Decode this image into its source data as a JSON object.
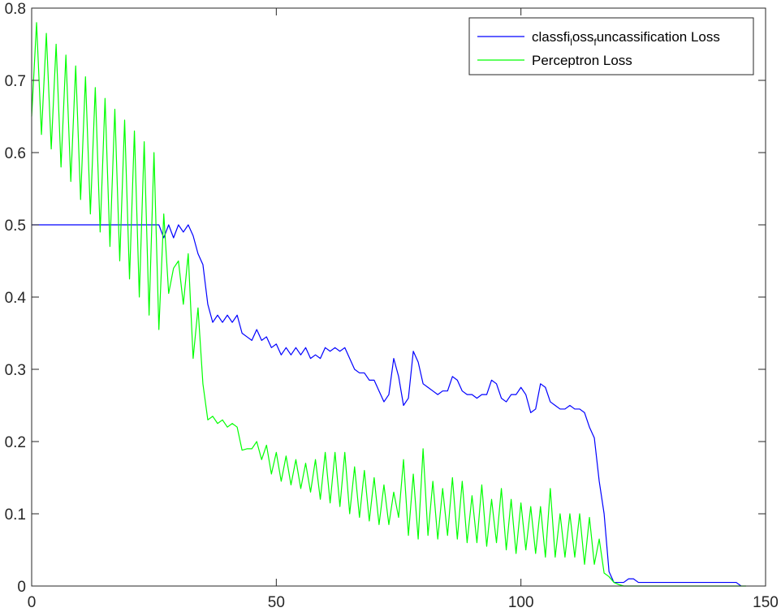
{
  "chart_data": {
    "type": "line",
    "title": "",
    "xlabel": "",
    "ylabel": "",
    "xlim": [
      0,
      150
    ],
    "ylim": [
      0,
      0.8
    ],
    "xticks": [
      "0",
      "50",
      "100",
      "150"
    ],
    "yticks": [
      "0",
      "0.1",
      "0.2",
      "0.3",
      "0.4",
      "0.5",
      "0.6",
      "0.7",
      "0.8"
    ],
    "grid": false,
    "legend_position": "top-right",
    "legend": {
      "blue_parts": [
        "classfi",
        "l",
        "oss",
        "f",
        "uncassification Loss"
      ],
      "green": "Perceptron Loss"
    },
    "series": [
      {
        "name": "classfi_loss_funcassification Loss",
        "color": "#0000ff",
        "x": [
          0,
          1,
          2,
          3,
          4,
          5,
          6,
          7,
          8,
          9,
          10,
          11,
          12,
          13,
          14,
          15,
          16,
          17,
          18,
          19,
          20,
          21,
          22,
          23,
          24,
          25,
          26,
          27,
          28,
          29,
          30,
          31,
          32,
          33,
          34,
          35,
          36,
          37,
          38,
          39,
          40,
          41,
          42,
          43,
          44,
          45,
          46,
          47,
          48,
          49,
          50,
          51,
          52,
          53,
          54,
          55,
          56,
          57,
          58,
          59,
          60,
          61,
          62,
          63,
          64,
          65,
          66,
          67,
          68,
          69,
          70,
          71,
          72,
          73,
          74,
          75,
          76,
          77,
          78,
          79,
          80,
          81,
          82,
          83,
          84,
          85,
          86,
          87,
          88,
          89,
          90,
          91,
          92,
          93,
          94,
          95,
          96,
          97,
          98,
          99,
          100,
          101,
          102,
          103,
          104,
          105,
          106,
          107,
          108,
          109,
          110,
          111,
          112,
          113,
          114,
          115,
          116,
          117,
          118,
          119,
          120,
          121,
          122,
          123,
          124,
          125,
          126,
          127,
          128,
          129,
          130,
          131,
          132,
          133,
          134,
          135,
          136,
          137,
          138,
          139,
          140,
          141,
          142,
          143,
          144,
          145
        ],
        "y": [
          0.5,
          0.5,
          0.5,
          0.5,
          0.5,
          0.5,
          0.5,
          0.5,
          0.5,
          0.5,
          0.5,
          0.5,
          0.5,
          0.5,
          0.5,
          0.5,
          0.5,
          0.5,
          0.5,
          0.5,
          0.5,
          0.5,
          0.5,
          0.5,
          0.5,
          0.5,
          0.5,
          0.482,
          0.5,
          0.482,
          0.5,
          0.49,
          0.5,
          0.485,
          0.46,
          0.445,
          0.39,
          0.365,
          0.375,
          0.365,
          0.375,
          0.365,
          0.375,
          0.35,
          0.345,
          0.34,
          0.355,
          0.34,
          0.345,
          0.33,
          0.335,
          0.32,
          0.33,
          0.32,
          0.33,
          0.32,
          0.33,
          0.315,
          0.32,
          0.315,
          0.33,
          0.325,
          0.33,
          0.325,
          0.33,
          0.315,
          0.3,
          0.295,
          0.295,
          0.285,
          0.285,
          0.27,
          0.255,
          0.265,
          0.315,
          0.29,
          0.25,
          0.26,
          0.325,
          0.31,
          0.28,
          0.275,
          0.27,
          0.265,
          0.27,
          0.27,
          0.29,
          0.285,
          0.27,
          0.265,
          0.265,
          0.26,
          0.265,
          0.265,
          0.285,
          0.28,
          0.26,
          0.255,
          0.265,
          0.265,
          0.275,
          0.265,
          0.24,
          0.245,
          0.28,
          0.275,
          0.255,
          0.25,
          0.245,
          0.245,
          0.25,
          0.245,
          0.245,
          0.24,
          0.22,
          0.205,
          0.145,
          0.1,
          0.02,
          0.005,
          0.005,
          0.005,
          0.01,
          0.01,
          0.005,
          0.005,
          0.005,
          0.005,
          0.005,
          0.005,
          0.005,
          0.005,
          0.005,
          0.005,
          0.005,
          0.005,
          0.005,
          0.005,
          0.005,
          0.005,
          0.005,
          0.005,
          0.005,
          0.005,
          0.005,
          0.0
        ]
      },
      {
        "name": "Perceptron Loss",
        "color": "#00ff00",
        "x": [
          0,
          1,
          2,
          3,
          4,
          5,
          6,
          7,
          8,
          9,
          10,
          11,
          12,
          13,
          14,
          15,
          16,
          17,
          18,
          19,
          20,
          21,
          22,
          23,
          24,
          25,
          26,
          27,
          28,
          29,
          30,
          31,
          32,
          33,
          34,
          35,
          36,
          37,
          38,
          39,
          40,
          41,
          42,
          43,
          44,
          45,
          46,
          47,
          48,
          49,
          50,
          51,
          52,
          53,
          54,
          55,
          56,
          57,
          58,
          59,
          60,
          61,
          62,
          63,
          64,
          65,
          66,
          67,
          68,
          69,
          70,
          71,
          72,
          73,
          74,
          75,
          76,
          77,
          78,
          79,
          80,
          81,
          82,
          83,
          84,
          85,
          86,
          87,
          88,
          89,
          90,
          91,
          92,
          93,
          94,
          95,
          96,
          97,
          98,
          99,
          100,
          101,
          102,
          103,
          104,
          105,
          106,
          107,
          108,
          109,
          110,
          111,
          112,
          113,
          114,
          115,
          116,
          117,
          118,
          119,
          120,
          121,
          122,
          123,
          124,
          125,
          126,
          127,
          128,
          129,
          130,
          131,
          132,
          133,
          134,
          135,
          136,
          137,
          138,
          139,
          140,
          141,
          142,
          143,
          144,
          145,
          146
        ],
        "y": [
          0.65,
          0.78,
          0.625,
          0.765,
          0.605,
          0.75,
          0.58,
          0.735,
          0.56,
          0.72,
          0.535,
          0.705,
          0.515,
          0.69,
          0.49,
          0.675,
          0.47,
          0.66,
          0.45,
          0.645,
          0.425,
          0.63,
          0.4,
          0.615,
          0.375,
          0.6,
          0.355,
          0.515,
          0.405,
          0.44,
          0.45,
          0.39,
          0.46,
          0.315,
          0.385,
          0.28,
          0.23,
          0.235,
          0.225,
          0.23,
          0.22,
          0.225,
          0.22,
          0.188,
          0.19,
          0.19,
          0.2,
          0.175,
          0.195,
          0.155,
          0.185,
          0.145,
          0.18,
          0.14,
          0.175,
          0.135,
          0.17,
          0.13,
          0.175,
          0.12,
          0.185,
          0.115,
          0.185,
          0.11,
          0.185,
          0.1,
          0.165,
          0.095,
          0.16,
          0.09,
          0.15,
          0.085,
          0.14,
          0.085,
          0.13,
          0.095,
          0.175,
          0.07,
          0.155,
          0.065,
          0.19,
          0.07,
          0.145,
          0.065,
          0.135,
          0.07,
          0.15,
          0.065,
          0.145,
          0.06,
          0.125,
          0.06,
          0.14,
          0.055,
          0.12,
          0.06,
          0.135,
          0.05,
          0.12,
          0.045,
          0.115,
          0.05,
          0.11,
          0.045,
          0.11,
          0.04,
          0.135,
          0.04,
          0.1,
          0.04,
          0.1,
          0.04,
          0.1,
          0.03,
          0.095,
          0.03,
          0.065,
          0.018,
          0.013,
          0.005,
          0.002,
          0.0,
          0.0,
          0.0,
          0.0,
          0.0,
          0.0,
          0.0,
          0.0,
          0.0,
          0.0,
          0.0,
          0.0,
          0.0,
          0.0,
          0.0,
          0.0,
          0.0,
          0.0,
          0.0,
          0.0,
          0.0,
          0.0,
          0.0,
          0.0,
          0.0,
          0.0
        ]
      }
    ]
  }
}
